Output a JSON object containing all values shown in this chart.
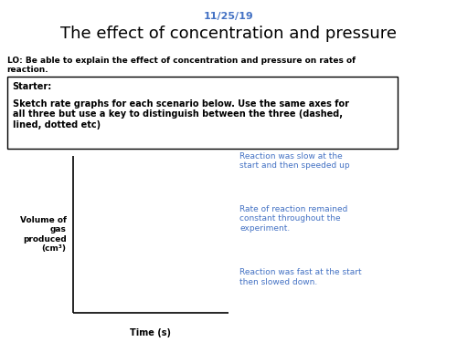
{
  "date": "11/25/19",
  "title": "The effect of concentration and pressure",
  "lo_text": "LO: Be able to explain the effect of concentration and pressure on rates of\nreaction.",
  "starter_label": "Starter:",
  "starter_body": "Sketch rate graphs for each scenario below. Use the same axes for\nall three but use a key to distinguish between the three (dashed,\nlined, dotted etc)",
  "ylabel": "Volume of\ngas\nproduced\n(cm³)",
  "xlabel": "Time (s)",
  "reaction_text_1": "Reaction was slow at the\nstart and then speeded up",
  "reaction_text_2": "Rate of reaction remained\nconstant throughout the\nexperiment.",
  "reaction_text_3": "Reaction was fast at the start\nthen slowed down.",
  "blue_color": "#4472C4",
  "black_color": "#000000",
  "background": "#ffffff",
  "title_fontsize": 13,
  "date_fontsize": 8,
  "lo_fontsize": 6.5,
  "starter_label_fontsize": 7,
  "starter_body_fontsize": 7,
  "reaction_fontsize": 6.5,
  "ylabel_fontsize": 6.5,
  "xlabel_fontsize": 7
}
